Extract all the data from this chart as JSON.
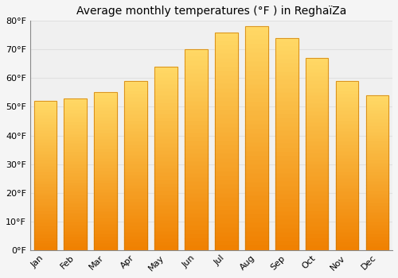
{
  "title": "Average monthly temperatures (°F ) in ReghaïZa",
  "categories": [
    "Jan",
    "Feb",
    "Mar",
    "Apr",
    "May",
    "Jun",
    "Jul",
    "Aug",
    "Sep",
    "Oct",
    "Nov",
    "Dec"
  ],
  "values": [
    52,
    53,
    55,
    59,
    64,
    70,
    76,
    78,
    74,
    67,
    59,
    54
  ],
  "bar_color_top": "#FFD966",
  "bar_color_mid": "#FFAA00",
  "bar_color_bottom": "#F08000",
  "bar_edge_color": "#CC7700",
  "ylim": [
    0,
    80
  ],
  "yticks": [
    0,
    10,
    20,
    30,
    40,
    50,
    60,
    70,
    80
  ],
  "ytick_labels": [
    "0°F",
    "10°F",
    "20°F",
    "30°F",
    "40°F",
    "50°F",
    "60°F",
    "70°F",
    "80°F"
  ],
  "background_color": "#f5f5f5",
  "plot_bg_color": "#f0f0f0",
  "grid_color": "#e0e0e0",
  "title_fontsize": 10,
  "tick_fontsize": 8,
  "bar_width": 0.75,
  "n_grad": 50
}
